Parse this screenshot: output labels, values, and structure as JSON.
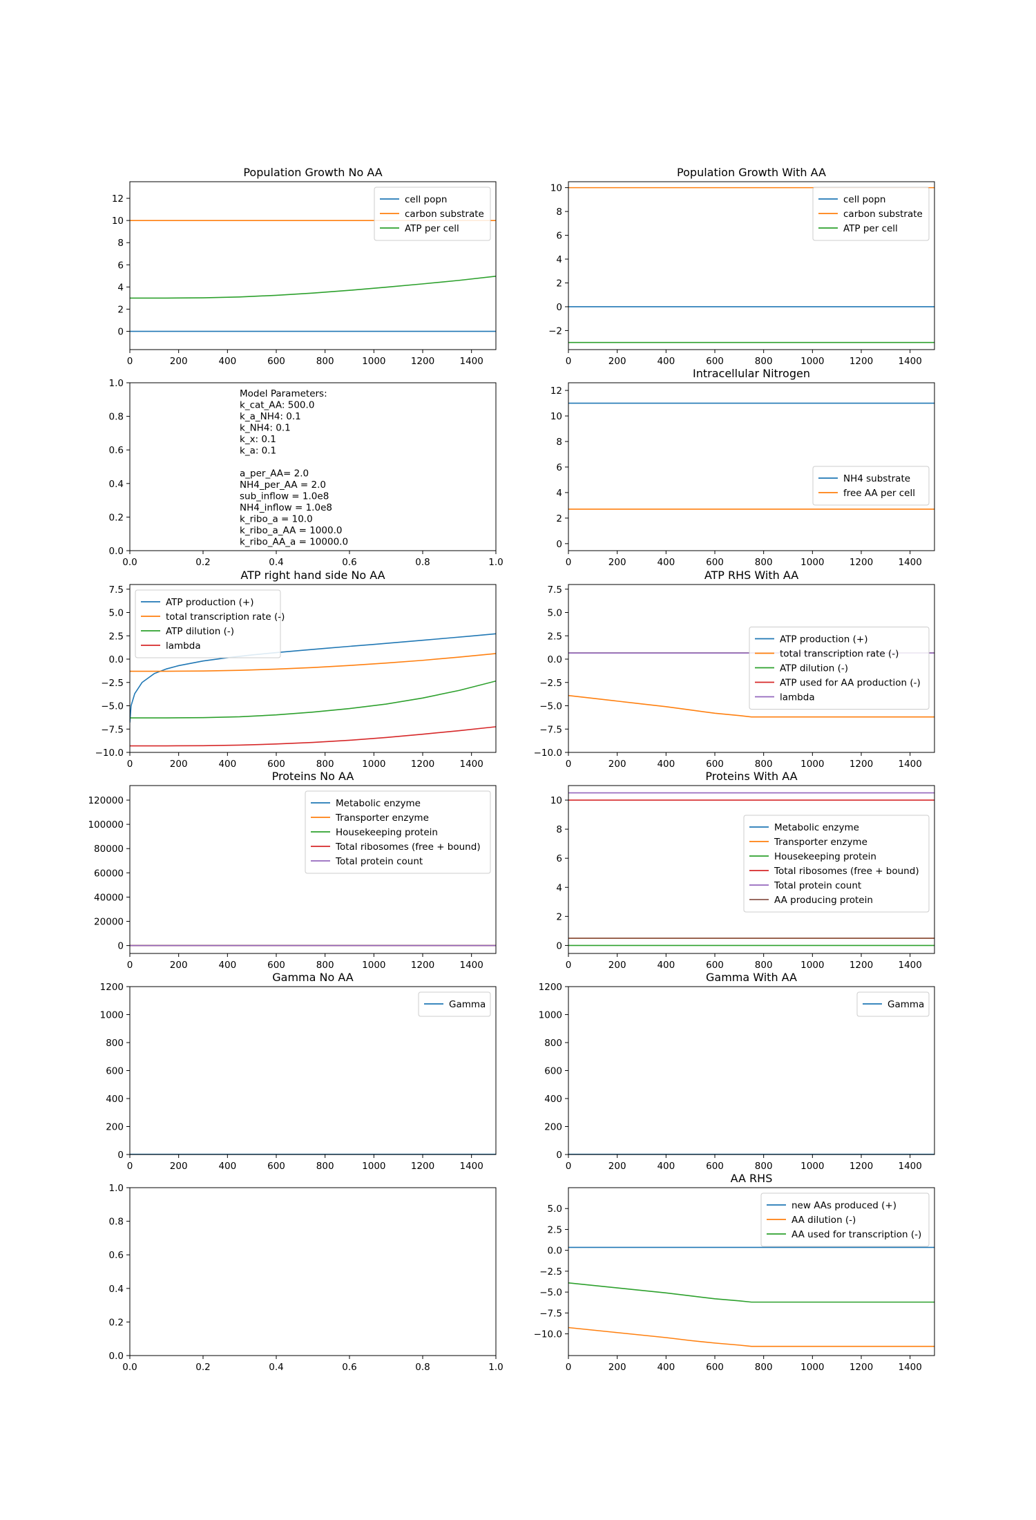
{
  "chart_data": [
    {
      "id": "pop_no_aa",
      "type": "line",
      "title": "Population Growth No AA",
      "xlim": [
        0,
        1500
      ],
      "ylim": [
        -1.65,
        13.5
      ],
      "xticks": [
        0,
        200,
        400,
        600,
        800,
        1000,
        1200,
        1400
      ],
      "yticks": [
        0,
        2,
        4,
        6,
        8,
        10,
        12
      ],
      "legend_position": "upper right",
      "series": [
        {
          "name": "cell popn",
          "color": "#1f77b4",
          "x": [
            0,
            1500
          ],
          "y": [
            0,
            0
          ]
        },
        {
          "name": "carbon substrate",
          "color": "#ff7f0e",
          "x": [
            0,
            1500
          ],
          "y": [
            10,
            10
          ]
        },
        {
          "name": "ATP per cell",
          "color": "#2ca02c",
          "x": [
            0,
            150,
            300,
            450,
            600,
            750,
            900,
            1050,
            1200,
            1350,
            1500
          ],
          "y": [
            3.0,
            3.0,
            3.02,
            3.1,
            3.25,
            3.45,
            3.7,
            3.98,
            4.28,
            4.6,
            4.97
          ]
        }
      ]
    },
    {
      "id": "pop_with_aa",
      "type": "line",
      "title": "Population Growth With AA",
      "xlim": [
        0,
        1500
      ],
      "ylim": [
        -3.6,
        10.5
      ],
      "xticks": [
        0,
        200,
        400,
        600,
        800,
        1000,
        1200,
        1400
      ],
      "yticks": [
        -2,
        0,
        2,
        4,
        6,
        8,
        10
      ],
      "legend_position": "upper right",
      "series": [
        {
          "name": "cell popn",
          "color": "#1f77b4",
          "x": [
            0,
            1500
          ],
          "y": [
            0,
            0
          ]
        },
        {
          "name": "carbon substrate",
          "color": "#ff7f0e",
          "x": [
            0,
            1500
          ],
          "y": [
            10,
            10
          ]
        },
        {
          "name": "ATP per cell",
          "color": "#2ca02c",
          "x": [
            0,
            1500
          ],
          "y": [
            -3.0,
            -3.0
          ]
        }
      ]
    },
    {
      "id": "params_panel",
      "type": "text",
      "xlim": [
        0,
        1
      ],
      "ylim": [
        0,
        1
      ],
      "xticks": [
        0.0,
        0.2,
        0.4,
        0.6,
        0.8,
        1.0
      ],
      "yticks": [
        0.0,
        0.2,
        0.4,
        0.6,
        0.8,
        1.0
      ],
      "xtick_labels": [
        "0.0",
        "0.2",
        "0.4",
        "0.6",
        "0.8",
        "1.0"
      ],
      "ytick_labels": [
        "0.0",
        "0.2",
        "0.4",
        "0.6",
        "0.8",
        "1.0"
      ],
      "annotation_lines": [
        "Model Parameters:",
        "k_cat_AA: 500.0",
        "k_a_NH4: 0.1",
        "k_NH4: 0.1",
        "k_x: 0.1",
        "k_a: 0.1",
        "",
        "a_per_AA= 2.0",
        "NH4_per_AA = 2.0",
        "sub_inflow = 1.0e8",
        "NH4_inflow = 1.0e8",
        "k_ribo_a = 10.0",
        "k_ribo_a_AA = 1000.0",
        "k_ribo_AA_a = 10000.0"
      ]
    },
    {
      "id": "intracellular_n",
      "type": "line",
      "title": "Intracellular Nitrogen",
      "xlim": [
        0,
        1500
      ],
      "ylim": [
        -0.55,
        12.6
      ],
      "xticks": [
        0,
        200,
        400,
        600,
        800,
        1000,
        1200,
        1400
      ],
      "yticks": [
        0,
        2,
        4,
        6,
        8,
        10,
        12
      ],
      "legend_position": "center right",
      "series": [
        {
          "name": "NH4 substrate",
          "color": "#1f77b4",
          "x": [
            0,
            1500
          ],
          "y": [
            11.0,
            11.0
          ]
        },
        {
          "name": "free AA per cell",
          "color": "#ff7f0e",
          "x": [
            0,
            1500
          ],
          "y": [
            2.7,
            2.7
          ]
        }
      ]
    },
    {
      "id": "atp_rhs_no_aa",
      "type": "line",
      "title": "ATP right hand side No AA",
      "xlim": [
        0,
        1500
      ],
      "ylim": [
        -10.0,
        8.0
      ],
      "xticks": [
        0,
        200,
        400,
        600,
        800,
        1000,
        1200,
        1400
      ],
      "yticks": [
        -10.0,
        -7.5,
        -5.0,
        -2.5,
        0.0,
        2.5,
        5.0,
        7.5
      ],
      "ytick_labels": [
        "−10.0",
        "−7.5",
        "−5.0",
        "−2.5",
        "0.0",
        "2.5",
        "5.0",
        "7.5"
      ],
      "legend_position": "upper left",
      "series": [
        {
          "name": "ATP production (+)",
          "color": "#1f77b4",
          "x": [
            0,
            5,
            20,
            50,
            100,
            150,
            200,
            300,
            400,
            500,
            600,
            700,
            800,
            900,
            1000,
            1100,
            1200,
            1300,
            1400,
            1500
          ],
          "y": [
            -6.8,
            -5.0,
            -3.7,
            -2.5,
            -1.55,
            -1.05,
            -0.7,
            -0.2,
            0.15,
            0.45,
            0.7,
            0.93,
            1.15,
            1.37,
            1.58,
            1.8,
            2.02,
            2.25,
            2.48,
            2.72
          ]
        },
        {
          "name": "total transcription rate (-)",
          "color": "#ff7f0e",
          "x": [
            0,
            150,
            300,
            450,
            600,
            750,
            900,
            1050,
            1200,
            1350,
            1500
          ],
          "y": [
            -1.3,
            -1.3,
            -1.27,
            -1.2,
            -1.07,
            -0.9,
            -0.68,
            -0.42,
            -0.13,
            0.22,
            0.6
          ]
        },
        {
          "name": "ATP dilution (-)",
          "color": "#2ca02c",
          "x": [
            0,
            150,
            300,
            450,
            600,
            750,
            900,
            1050,
            1200,
            1350,
            1500
          ],
          "y": [
            -6.3,
            -6.3,
            -6.27,
            -6.18,
            -5.98,
            -5.68,
            -5.3,
            -4.82,
            -4.17,
            -3.35,
            -2.35
          ]
        },
        {
          "name": "lambda",
          "color": "#d62728",
          "x": [
            0,
            150,
            300,
            450,
            600,
            750,
            900,
            1050,
            1200,
            1350,
            1500
          ],
          "y": [
            -9.3,
            -9.3,
            -9.28,
            -9.22,
            -9.1,
            -8.93,
            -8.7,
            -8.4,
            -8.05,
            -7.67,
            -7.25
          ]
        }
      ]
    },
    {
      "id": "atp_rhs_with_aa",
      "type": "line",
      "title": "ATP RHS With AA",
      "xlim": [
        0,
        1500
      ],
      "ylim": [
        -10.0,
        8.0
      ],
      "xticks": [
        0,
        200,
        400,
        600,
        800,
        1000,
        1200,
        1400
      ],
      "yticks": [
        -10.0,
        -7.5,
        -5.0,
        -2.5,
        0.0,
        2.5,
        5.0,
        7.5
      ],
      "ytick_labels": [
        "−10.0",
        "−7.5",
        "−5.0",
        "−2.5",
        "0.0",
        "2.5",
        "5.0",
        "7.5"
      ],
      "legend_position": "center right",
      "series": [
        {
          "name": "ATP production (+)",
          "color": "#1f77b4",
          "x": [
            0,
            1500
          ],
          "y": [
            0.65,
            0.65
          ]
        },
        {
          "name": "total transcription rate (-)",
          "color": "#ff7f0e",
          "x": [
            0,
            100,
            200,
            300,
            400,
            500,
            600,
            700,
            750,
            800,
            1500
          ],
          "y": [
            -3.9,
            -4.2,
            -4.5,
            -4.8,
            -5.1,
            -5.45,
            -5.8,
            -6.05,
            -6.2,
            -6.2,
            -6.2
          ]
        },
        {
          "name": "ATP dilution (-)",
          "color": "#2ca02c",
          "x": [
            0,
            1500
          ],
          "y": [
            0.65,
            0.65
          ]
        },
        {
          "name": "ATP used for AA production (-)",
          "color": "#d62728",
          "x": [
            0,
            1500
          ],
          "y": [
            0.65,
            0.65
          ]
        },
        {
          "name": "lambda",
          "color": "#9467bd",
          "x": [
            0,
            1500
          ],
          "y": [
            0.65,
            0.65
          ]
        }
      ]
    },
    {
      "id": "proteins_no_aa",
      "type": "line",
      "title": "Proteins No AA",
      "xlim": [
        0,
        1500
      ],
      "ylim": [
        -6500,
        132000
      ],
      "xticks": [
        0,
        200,
        400,
        600,
        800,
        1000,
        1200,
        1400
      ],
      "yticks": [
        0,
        20000,
        40000,
        60000,
        80000,
        100000,
        120000
      ],
      "legend_position": "upper right",
      "series": [
        {
          "name": "Metabolic enzyme",
          "color": "#1f77b4",
          "x": [
            0,
            1500
          ],
          "y": [
            0,
            0
          ]
        },
        {
          "name": "Transporter enzyme",
          "color": "#ff7f0e",
          "x": [
            0,
            1500
          ],
          "y": [
            0,
            0
          ]
        },
        {
          "name": "Housekeeping protein",
          "color": "#2ca02c",
          "x": [
            0,
            1500
          ],
          "y": [
            0,
            0
          ]
        },
        {
          "name": "Total ribosomes (free + bound)",
          "color": "#d62728",
          "x": [
            0,
            1500
          ],
          "y": [
            0,
            0
          ]
        },
        {
          "name": "Total protein count",
          "color": "#9467bd",
          "x": [
            0,
            1500
          ],
          "y": [
            0,
            0
          ]
        }
      ]
    },
    {
      "id": "proteins_with_aa",
      "type": "line",
      "title": "Proteins With AA",
      "xlim": [
        0,
        1500
      ],
      "ylim": [
        -0.55,
        11.0
      ],
      "xticks": [
        0,
        200,
        400,
        600,
        800,
        1000,
        1200,
        1400
      ],
      "yticks": [
        0,
        2,
        4,
        6,
        8,
        10
      ],
      "legend_position": "center right",
      "series": [
        {
          "name": "Metabolic enzyme",
          "color": "#1f77b4",
          "x": [
            0,
            1500
          ],
          "y": [
            0.5,
            0.5
          ]
        },
        {
          "name": "Transporter enzyme",
          "color": "#ff7f0e",
          "x": [
            0,
            1500
          ],
          "y": [
            0.5,
            0.5
          ]
        },
        {
          "name": "Housekeeping protein",
          "color": "#2ca02c",
          "x": [
            0,
            1500
          ],
          "y": [
            0.0,
            0.0
          ]
        },
        {
          "name": "Total ribosomes (free + bound)",
          "color": "#d62728",
          "x": [
            0,
            1500
          ],
          "y": [
            10.0,
            10.0
          ]
        },
        {
          "name": "Total protein count",
          "color": "#9467bd",
          "x": [
            0,
            1500
          ],
          "y": [
            10.5,
            10.5
          ]
        },
        {
          "name": "AA producing protein",
          "color": "#8c564b",
          "x": [
            0,
            1500
          ],
          "y": [
            0.5,
            0.5
          ]
        }
      ]
    },
    {
      "id": "gamma_no_aa",
      "type": "line",
      "title": "Gamma No AA",
      "xlim": [
        0,
        1500
      ],
      "ylim": [
        0,
        1200
      ],
      "xticks": [
        0,
        200,
        400,
        600,
        800,
        1000,
        1200,
        1400
      ],
      "yticks": [
        0,
        200,
        400,
        600,
        800,
        1000,
        1200
      ],
      "legend_position": "upper right",
      "series": [
        {
          "name": "Gamma",
          "color": "#1f77b4",
          "x": [
            0,
            1500
          ],
          "y": [
            1.5,
            1.5
          ]
        }
      ]
    },
    {
      "id": "gamma_with_aa",
      "type": "line",
      "title": "Gamma With AA",
      "xlim": [
        0,
        1500
      ],
      "ylim": [
        0,
        1200
      ],
      "xticks": [
        0,
        200,
        400,
        600,
        800,
        1000,
        1200,
        1400
      ],
      "yticks": [
        0,
        200,
        400,
        600,
        800,
        1000,
        1200
      ],
      "legend_position": "upper right",
      "series": [
        {
          "name": "Gamma",
          "color": "#1f77b4",
          "x": [
            0,
            1500
          ],
          "y": [
            1.5,
            1.5
          ]
        }
      ]
    },
    {
      "id": "empty_panel",
      "type": "line",
      "xlim": [
        0,
        1
      ],
      "ylim": [
        0,
        1
      ],
      "xticks": [
        0.0,
        0.2,
        0.4,
        0.6,
        0.8,
        1.0
      ],
      "yticks": [
        0.0,
        0.2,
        0.4,
        0.6,
        0.8,
        1.0
      ],
      "xtick_labels": [
        "0.0",
        "0.2",
        "0.4",
        "0.6",
        "0.8",
        "1.0"
      ],
      "ytick_labels": [
        "0.0",
        "0.2",
        "0.4",
        "0.6",
        "0.8",
        "1.0"
      ],
      "series": []
    },
    {
      "id": "aa_rhs",
      "type": "line",
      "title": "AA RHS",
      "xlim": [
        0,
        1500
      ],
      "ylim": [
        -12.6,
        7.5
      ],
      "xticks": [
        0,
        200,
        400,
        600,
        800,
        1000,
        1200,
        1400
      ],
      "yticks": [
        -10.0,
        -7.5,
        -5.0,
        -2.5,
        0.0,
        2.5,
        5.0
      ],
      "ytick_labels": [
        "−10.0",
        "−7.5",
        "−5.0",
        "−2.5",
        "0.0",
        "2.5",
        "5.0"
      ],
      "legend_position": "upper right",
      "series": [
        {
          "name": "new AAs produced (+)",
          "color": "#1f77b4",
          "x": [
            0,
            1500
          ],
          "y": [
            0.35,
            0.35
          ]
        },
        {
          "name": "AA dilution (-)",
          "color": "#ff7f0e",
          "x": [
            0,
            100,
            200,
            300,
            400,
            500,
            600,
            700,
            750,
            800,
            1500
          ],
          "y": [
            -9.25,
            -9.55,
            -9.85,
            -10.15,
            -10.45,
            -10.8,
            -11.1,
            -11.35,
            -11.5,
            -11.5,
            -11.5
          ]
        },
        {
          "name": "AA used for transcription (-)",
          "color": "#2ca02c",
          "x": [
            0,
            100,
            200,
            300,
            400,
            500,
            600,
            700,
            750,
            800,
            1500
          ],
          "y": [
            -3.9,
            -4.2,
            -4.5,
            -4.8,
            -5.1,
            -5.45,
            -5.8,
            -6.05,
            -6.2,
            -6.2,
            -6.2
          ]
        }
      ]
    }
  ]
}
